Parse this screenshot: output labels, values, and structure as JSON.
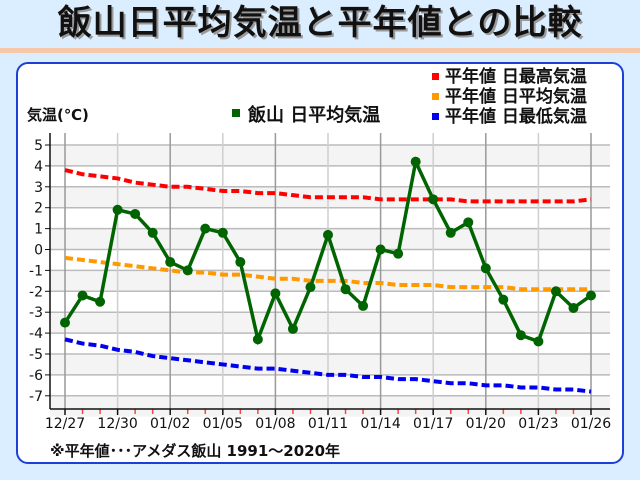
{
  "page": {
    "title": "飯山日平均気温と平年値との比較",
    "footnote": "※平年値･･･アメダス飯山 1991〜2020年"
  },
  "colors": {
    "background": "#dbeeff",
    "title_rule": "#f6c7a8",
    "card_border": "#1c3fd6",
    "observed": "#006400",
    "normal_high": "#ff0000",
    "normal_mean": "#ff9900",
    "normal_low": "#0000ee",
    "grid": "#bbbbbb",
    "band": "#f4f4f4"
  },
  "chart_data": {
    "type": "line",
    "title": "飯山日平均気温と平年値との比較",
    "xlabel": "",
    "ylabel": "気温(℃)",
    "ylim": [
      -7.5,
      5.5
    ],
    "yticks": [
      5,
      4,
      3,
      2,
      1,
      0,
      -1,
      -2,
      -3,
      -4,
      -5,
      -6,
      -7
    ],
    "grid": true,
    "legend_position": "top",
    "x": [
      "12/27",
      "12/28",
      "12/29",
      "12/30",
      "12/31",
      "01/01",
      "01/02",
      "01/03",
      "01/04",
      "01/05",
      "01/06",
      "01/07",
      "01/08",
      "01/09",
      "01/10",
      "01/11",
      "01/12",
      "01/13",
      "01/14",
      "01/15",
      "01/16",
      "01/17",
      "01/18",
      "01/19",
      "01/20",
      "01/21",
      "01/22",
      "01/23",
      "01/24",
      "01/25",
      "01/26"
    ],
    "xtick_labels": [
      "12/27",
      "12/30",
      "01/02",
      "01/05",
      "01/08",
      "01/11",
      "01/14",
      "01/17",
      "01/20",
      "01/23",
      "01/26"
    ],
    "series": [
      {
        "name": "平年値 日最高気温",
        "style": "dashed",
        "color": "#ff0000",
        "values": [
          3.8,
          3.6,
          3.5,
          3.4,
          3.2,
          3.1,
          3.0,
          3.0,
          2.9,
          2.8,
          2.8,
          2.7,
          2.7,
          2.6,
          2.5,
          2.5,
          2.5,
          2.5,
          2.4,
          2.4,
          2.4,
          2.4,
          2.4,
          2.3,
          2.3,
          2.3,
          2.3,
          2.3,
          2.3,
          2.3,
          2.4
        ]
      },
      {
        "name": "平年値 日平均気温",
        "style": "dashed",
        "color": "#ff9900",
        "values": [
          -0.4,
          -0.5,
          -0.6,
          -0.7,
          -0.8,
          -0.9,
          -1.0,
          -1.1,
          -1.1,
          -1.2,
          -1.2,
          -1.3,
          -1.4,
          -1.4,
          -1.5,
          -1.5,
          -1.5,
          -1.6,
          -1.6,
          -1.7,
          -1.7,
          -1.7,
          -1.8,
          -1.8,
          -1.8,
          -1.8,
          -1.9,
          -1.9,
          -1.9,
          -1.9,
          -1.9
        ]
      },
      {
        "name": "平年値 日最低気温",
        "style": "dashed",
        "color": "#0000ee",
        "values": [
          -4.3,
          -4.5,
          -4.6,
          -4.8,
          -4.9,
          -5.1,
          -5.2,
          -5.3,
          -5.4,
          -5.5,
          -5.6,
          -5.7,
          -5.7,
          -5.8,
          -5.9,
          -6.0,
          -6.0,
          -6.1,
          -6.1,
          -6.2,
          -6.2,
          -6.3,
          -6.4,
          -6.4,
          -6.5,
          -6.5,
          -6.6,
          -6.6,
          -6.7,
          -6.7,
          -6.8
        ]
      },
      {
        "name": "飯山 日平均気温",
        "style": "solid-markers",
        "color": "#006400",
        "values": [
          -3.5,
          -2.2,
          -2.5,
          1.9,
          1.7,
          0.8,
          -0.6,
          -1.0,
          1.0,
          0.8,
          -0.6,
          -4.3,
          -2.1,
          -3.8,
          -1.8,
          0.7,
          -1.9,
          -2.7,
          0.0,
          -0.2,
          4.2,
          2.4,
          0.8,
          1.3,
          -0.9,
          -2.4,
          -4.1,
          -4.4,
          -2.0,
          -2.8,
          -2.2
        ]
      }
    ]
  }
}
